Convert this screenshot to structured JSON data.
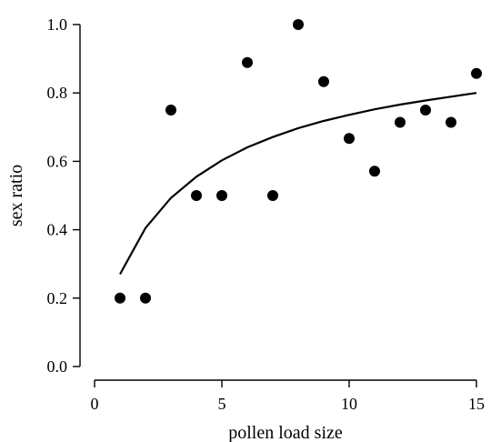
{
  "chart_data": {
    "type": "scatter",
    "title": "",
    "xlabel": "pollen load size",
    "ylabel": "sex ratio",
    "xlim": [
      0,
      15
    ],
    "ylim": [
      0,
      1.0
    ],
    "xticks": [
      0,
      5,
      10,
      15
    ],
    "yticks": [
      0.0,
      0.2,
      0.4,
      0.6,
      0.8,
      1.0
    ],
    "xtick_labels": [
      "0",
      "5",
      "10",
      "15"
    ],
    "ytick_labels": [
      "0.0",
      "0.2",
      "0.4",
      "0.6",
      "0.8",
      "1.0"
    ],
    "grid": false,
    "legend": "none",
    "series": [
      {
        "kind": "points",
        "x": [
          1,
          2,
          3,
          4,
          5,
          6,
          7,
          8,
          9,
          10,
          11,
          12,
          13,
          14,
          15
        ],
        "y": [
          0.2,
          0.2,
          0.75,
          0.5,
          0.5,
          0.889,
          0.5,
          1.0,
          0.833,
          0.667,
          0.571,
          0.714,
          0.75,
          0.714,
          0.857
        ]
      },
      {
        "kind": "line",
        "x": [
          1,
          2,
          3,
          4,
          5,
          6,
          7,
          8,
          9,
          10,
          11,
          12,
          13,
          14,
          15
        ],
        "y": [
          0.27,
          0.405,
          0.493,
          0.555,
          0.603,
          0.641,
          0.671,
          0.697,
          0.718,
          0.736,
          0.752,
          0.766,
          0.778,
          0.789,
          0.8
        ]
      }
    ]
  }
}
